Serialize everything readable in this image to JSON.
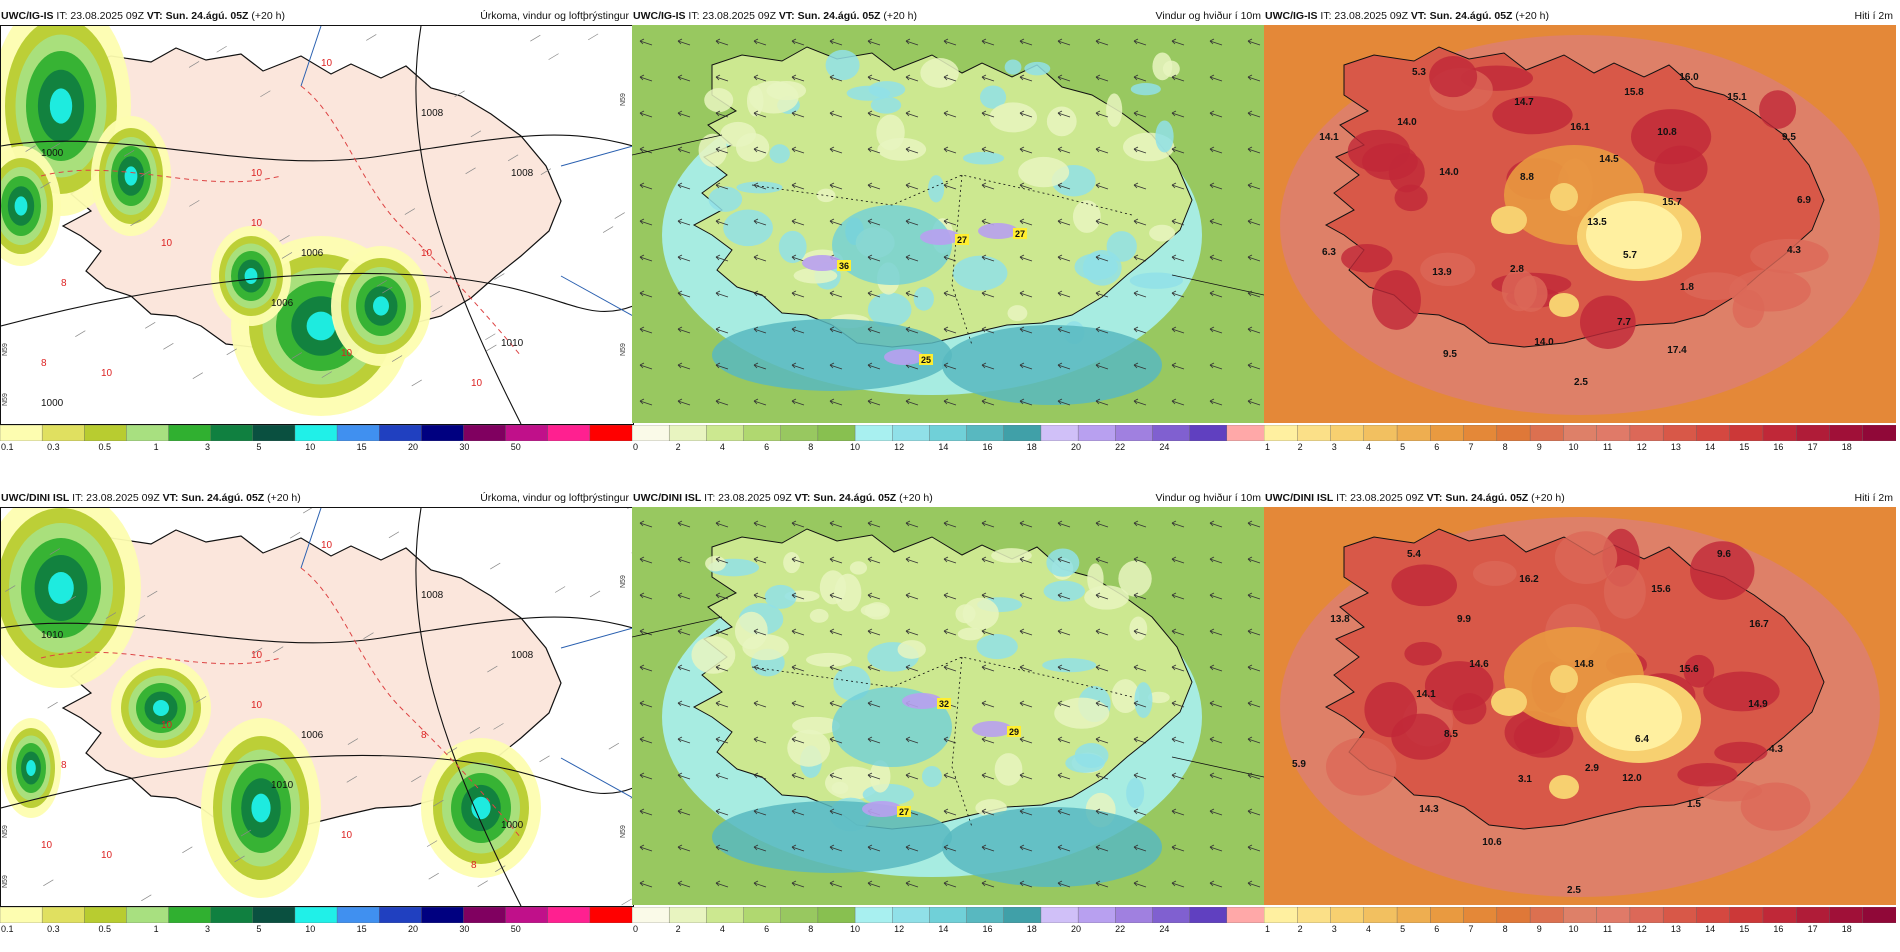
{
  "panels": [
    {
      "id": "p1",
      "model": "UWC/IG-IS",
      "it": "IT: 23.08.2025 09Z",
      "vt_label": "VT:",
      "vt": "Sun. 24.ágú. 05Z",
      "lead": "(+20 h)",
      "title": "Úrkoma, vindur og loftþrýstingur",
      "type": "precip",
      "pressure_labels": [
        "1008",
        "1006",
        "1000",
        "1008",
        "1010",
        "1006",
        "1000"
      ],
      "rain_labels": [
        "10",
        "10",
        "10",
        "10",
        "10",
        "10",
        "10",
        "10",
        "8",
        "8"
      ],
      "side_labels": [
        "N59",
        "N59",
        "N59",
        "N59"
      ]
    },
    {
      "id": "p2",
      "model": "UWC/IG-IS",
      "it": "IT: 23.08.2025 09Z",
      "vt_label": "VT:",
      "vt": "Sun. 24.ágú. 05Z",
      "lead": "(+20 h)",
      "title": "Vindur og hviður í 10m",
      "type": "wind",
      "gusts": [
        "36",
        "27",
        "27",
        "25"
      ]
    },
    {
      "id": "p3",
      "model": "UWC/IG-IS",
      "it": "IT: 23.08.2025 09Z",
      "vt_label": "VT:",
      "vt": "Sun. 24.ágú. 05Z",
      "lead": "(+20 h)",
      "title": "Hiti í 2m",
      "type": "temp",
      "temps": [
        "5.3",
        "16.0",
        "14.7",
        "15.8",
        "15.1",
        "14.0",
        "16.1",
        "10.8",
        "9.5",
        "14.1",
        "14.0",
        "8.8",
        "14.5",
        "15.7",
        "6.9",
        "13.5",
        "5.7",
        "4.3",
        "6.3",
        "2.8",
        "13.9",
        "1.8",
        "7.7",
        "9.5",
        "14.0",
        "17.4",
        "2.5"
      ]
    },
    {
      "id": "p4",
      "model": "UWC/DINI ISL",
      "it": "IT: 23.08.2025 09Z",
      "vt_label": "VT:",
      "vt": "Sun. 24.ágú. 05Z",
      "lead": "(+20 h)",
      "title": "Úrkoma, vindur og loftþrýstingur",
      "type": "precip",
      "pressure_labels": [
        "1008",
        "1006",
        "1010",
        "1008",
        "1000",
        "1010"
      ],
      "rain_labels": [
        "10",
        "10",
        "10",
        "10",
        "8",
        "8",
        "10",
        "10",
        "10",
        "8"
      ],
      "side_labels": [
        "N59",
        "N59",
        "N59",
        "N59"
      ]
    },
    {
      "id": "p5",
      "model": "UWC/DINI ISL",
      "it": "IT: 23.08.2025 09Z",
      "vt_label": "VT:",
      "vt": "Sun. 24.ágú. 05Z",
      "lead": "(+20 h)",
      "title": "Vindur og hviður í 10m",
      "type": "wind",
      "gusts": [
        "32",
        "29",
        "27"
      ]
    },
    {
      "id": "p6",
      "model": "UWC/DINI ISL",
      "it": "IT: 23.08.2025 09Z",
      "vt_label": "VT:",
      "vt": "Sun. 24.ágú. 05Z",
      "lead": "(+20 h)",
      "title": "Hiti í 2m",
      "type": "temp",
      "temps": [
        "5.4",
        "9.6",
        "16.2",
        "15.6",
        "13.8",
        "9.9",
        "16.7",
        "14.6",
        "14.8",
        "15.6",
        "14.1",
        "14.9",
        "8.5",
        "6.4",
        "4.3",
        "5.9",
        "3.1",
        "2.9",
        "12.0",
        "14.3",
        "1.5",
        "10.6",
        "2.5"
      ]
    }
  ],
  "scales": {
    "precip": {
      "ticks": [
        "0.1",
        "0.3",
        "0.5",
        "1",
        "3",
        "5",
        "10",
        "15",
        "20",
        "30",
        "50"
      ],
      "colors": [
        "#fdfdb0",
        "#e0e060",
        "#b8cc30",
        "#a8e080",
        "#30b030",
        "#108040",
        "#0a5040",
        "#20f0e8",
        "#4090f0",
        "#2040c0",
        "#000080",
        "#800060",
        "#c0108a",
        "#ff2090",
        "#ff0000"
      ]
    },
    "wind": {
      "ticks": [
        "0",
        "2",
        "4",
        "6",
        "8",
        "10",
        "12",
        "14",
        "16",
        "18",
        "20",
        "22",
        "24"
      ],
      "colors": [
        "#fafae8",
        "#e8f4c0",
        "#cce890",
        "#b0d870",
        "#98c860",
        "#88c050",
        "#a8f0f0",
        "#90e0e8",
        "#70d0d8",
        "#58b8c0",
        "#40a0a8",
        "#d0c0f8",
        "#b8a0f0",
        "#a080e0",
        "#8060d0",
        "#6040c0",
        "#ffa8a8"
      ]
    },
    "temp": {
      "ticks": [
        "1",
        "2",
        "3",
        "4",
        "5",
        "6",
        "7",
        "8",
        "9",
        "10",
        "11",
        "12",
        "13",
        "14",
        "15",
        "16",
        "17",
        "18"
      ],
      "colors": [
        "#fff0a0",
        "#fbe088",
        "#f7d070",
        "#f2c060",
        "#eeae50",
        "#e99a40",
        "#e48838",
        "#df7838",
        "#dc7050",
        "#de8068",
        "#e07a68",
        "#dc6858",
        "#d85848",
        "#d44840",
        "#cc3838",
        "#c02838",
        "#b01c38",
        "#a01038",
        "#900838"
      ]
    }
  }
}
